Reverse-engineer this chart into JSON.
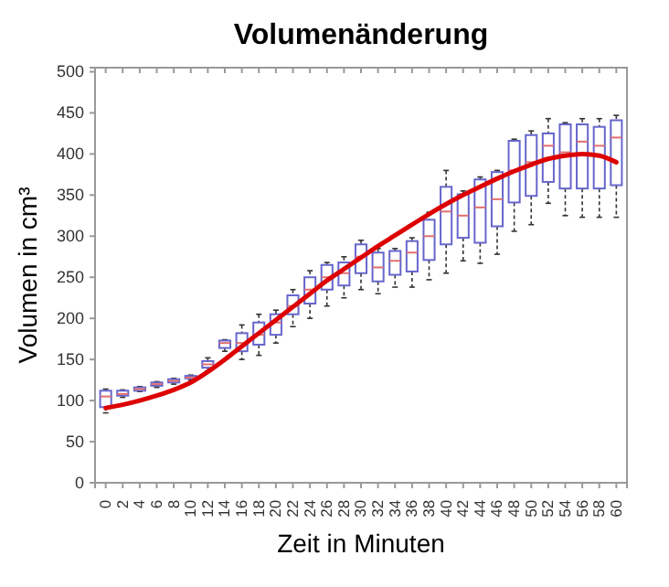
{
  "chart_data": {
    "type": "box",
    "title": "Volumenänderung",
    "xlabel": "Zeit in Minuten",
    "ylabel": "Volumen in cm³",
    "categories": [
      "0",
      "2",
      "4",
      "6",
      "8",
      "10",
      "12",
      "14",
      "16",
      "18",
      "20",
      "22",
      "24",
      "26",
      "28",
      "30",
      "32",
      "34",
      "36",
      "38",
      "40",
      "42",
      "44",
      "46",
      "48",
      "50",
      "52",
      "54",
      "56",
      "58",
      "60"
    ],
    "ylim": [
      0,
      505
    ],
    "yticks": [
      0,
      50,
      100,
      150,
      200,
      250,
      300,
      350,
      400,
      450,
      500
    ],
    "grid": false,
    "series": [
      {
        "color": "#6666cc",
        "boxes": [
          {
            "low": 85,
            "q1": 92,
            "median": 105,
            "q3": 112,
            "high": 114
          },
          {
            "low": 104,
            "q1": 106,
            "median": 108,
            "q3": 112,
            "high": 113
          },
          {
            "low": 111,
            "q1": 112,
            "median": 114,
            "q3": 116,
            "high": 117
          },
          {
            "low": 116,
            "q1": 118,
            "median": 120,
            "q3": 122,
            "high": 123
          },
          {
            "low": 120,
            "q1": 122,
            "median": 124,
            "q3": 126,
            "high": 127
          },
          {
            "low": 125,
            "q1": 127,
            "median": 128,
            "q3": 130,
            "high": 131
          },
          {
            "low": 136,
            "q1": 140,
            "median": 144,
            "q3": 148,
            "high": 152
          },
          {
            "low": 160,
            "q1": 164,
            "median": 170,
            "q3": 173,
            "high": 174
          },
          {
            "low": 150,
            "q1": 160,
            "median": 170,
            "q3": 182,
            "high": 192
          },
          {
            "low": 155,
            "q1": 168,
            "median": 180,
            "q3": 195,
            "high": 205
          },
          {
            "low": 170,
            "q1": 180,
            "median": 195,
            "q3": 205,
            "high": 210
          },
          {
            "low": 190,
            "q1": 205,
            "median": 215,
            "q3": 228,
            "high": 235
          },
          {
            "low": 200,
            "q1": 218,
            "median": 235,
            "q3": 250,
            "high": 258
          },
          {
            "low": 215,
            "q1": 235,
            "median": 250,
            "q3": 265,
            "high": 268
          },
          {
            "low": 225,
            "q1": 240,
            "median": 255,
            "q3": 268,
            "high": 275
          },
          {
            "low": 235,
            "q1": 255,
            "median": 275,
            "q3": 290,
            "high": 295
          },
          {
            "low": 230,
            "q1": 245,
            "median": 262,
            "q3": 280,
            "high": 285
          },
          {
            "low": 238,
            "q1": 253,
            "median": 270,
            "q3": 282,
            "high": 285
          },
          {
            "low": 238,
            "q1": 257,
            "median": 280,
            "q3": 294,
            "high": 298
          },
          {
            "low": 247,
            "q1": 271,
            "median": 300,
            "q3": 320,
            "high": 329
          },
          {
            "low": 255,
            "q1": 290,
            "median": 330,
            "q3": 360,
            "high": 380
          },
          {
            "low": 270,
            "q1": 298,
            "median": 325,
            "q3": 351,
            "high": 355
          },
          {
            "low": 267,
            "q1": 292,
            "median": 335,
            "q3": 369,
            "high": 372
          },
          {
            "low": 278,
            "q1": 312,
            "median": 345,
            "q3": 378,
            "high": 380
          },
          {
            "low": 306,
            "q1": 341,
            "median": 380,
            "q3": 416,
            "high": 418
          },
          {
            "low": 314,
            "q1": 349,
            "median": 390,
            "q3": 423,
            "high": 428
          },
          {
            "low": 340,
            "q1": 366,
            "median": 410,
            "q3": 425,
            "high": 443
          },
          {
            "low": 325,
            "q1": 358,
            "median": 402,
            "q3": 436,
            "high": 438
          },
          {
            "low": 323,
            "q1": 358,
            "median": 415,
            "q3": 436,
            "high": 443
          },
          {
            "low": 323,
            "q1": 358,
            "median": 410,
            "q3": 433,
            "high": 443
          },
          {
            "low": 323,
            "q1": 362,
            "median": 420,
            "q3": 441,
            "high": 447
          }
        ]
      },
      {
        "type": "line",
        "color": "#dd0000",
        "values": [
          91,
          95,
          100,
          106,
          113,
          122,
          135,
          150,
          166,
          182,
          198,
          214,
          230,
          246,
          260,
          274,
          288,
          301,
          314,
          327,
          339,
          350,
          360,
          370,
          379,
          387,
          394,
          398,
          400,
          398,
          390
        ]
      }
    ]
  }
}
